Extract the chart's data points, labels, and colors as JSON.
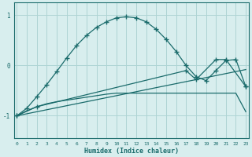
{
  "xlabel": "Humidex (Indice chaleur)",
  "x_ticks": [
    0,
    1,
    2,
    3,
    4,
    5,
    6,
    7,
    8,
    9,
    10,
    11,
    12,
    13,
    14,
    15,
    16,
    17,
    18,
    19,
    20,
    21,
    22,
    23
  ],
  "y_ticks": [
    -1,
    0,
    1
  ],
  "xlim": [
    -0.3,
    23.3
  ],
  "ylim": [
    -1.45,
    1.25
  ],
  "background_color": "#d8eeee",
  "grid_color": "#aed4d4",
  "line_color": "#1a6b6b",
  "curve1_x": [
    0,
    1,
    2,
    3,
    4,
    5,
    6,
    7,
    8,
    9,
    10,
    11,
    12,
    13,
    14,
    15,
    16,
    17,
    18,
    19,
    20,
    21,
    22,
    23
  ],
  "curve1_y": [
    -1.0,
    -0.85,
    -0.62,
    -0.38,
    -0.12,
    0.15,
    0.4,
    0.6,
    0.76,
    0.87,
    0.95,
    0.97,
    0.95,
    0.87,
    0.72,
    0.52,
    0.28,
    0.0,
    -0.22,
    -0.3,
    -0.1,
    0.1,
    0.12,
    -0.42
  ],
  "curve2_x": [
    0,
    1,
    2,
    3,
    4,
    5,
    6,
    7,
    8,
    9,
    10,
    11,
    12,
    13,
    14,
    15,
    16,
    17,
    18,
    19,
    20,
    21,
    22,
    23
  ],
  "curve2_y": [
    -1.0,
    -0.9,
    -0.82,
    -0.76,
    -0.72,
    -0.69,
    -0.66,
    -0.63,
    -0.6,
    -0.57,
    -0.55,
    -0.55,
    -0.55,
    -0.55,
    -0.55,
    -0.55,
    -0.55,
    -0.55,
    -0.55,
    -0.55,
    -0.55,
    -0.55,
    -0.55,
    -0.92
  ],
  "curve3_x": [
    0,
    23
  ],
  "curve3_y": [
    -1.0,
    -0.08
  ],
  "curve4_x": [
    0,
    2,
    17,
    18,
    20,
    21,
    23
  ],
  "curve4_y": [
    -1.0,
    -0.82,
    -0.1,
    -0.28,
    0.12,
    0.12,
    -0.42
  ]
}
